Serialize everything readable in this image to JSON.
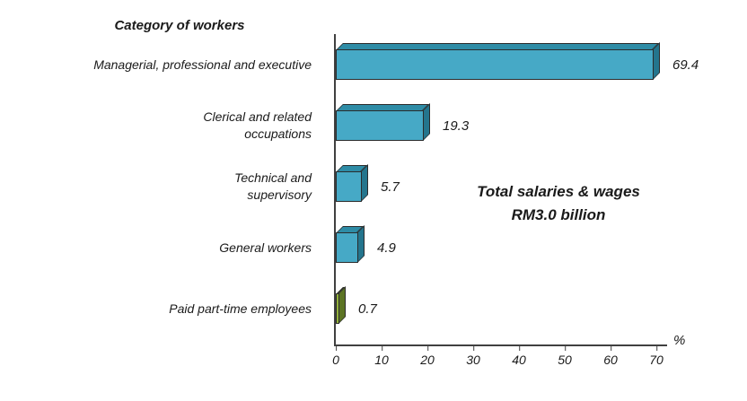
{
  "title": "Category of workers",
  "chart_data": {
    "type": "bar",
    "orientation": "horizontal",
    "title": "Category of workers",
    "categories": [
      "Managerial, professional and executive",
      "Clerical and related occupations",
      "Technical and supervisory",
      "General workers",
      "Paid part-time employees"
    ],
    "display_labels": [
      "Managerial, professional and executive",
      "Clerical and related\noccupations",
      "Technical and\nsupervisory",
      "General workers",
      "Paid part-time employees"
    ],
    "values": [
      69.4,
      19.3,
      5.7,
      4.9,
      0.7
    ],
    "xlabel": "%",
    "xlim": [
      0,
      70
    ],
    "xticks": [
      0,
      10,
      20,
      30,
      40,
      50,
      60,
      70
    ],
    "grid": false,
    "legend": "none",
    "bar_colors": [
      {
        "front": "#46A9C6",
        "top": "#2E8CA6",
        "side": "#24758D"
      },
      {
        "front": "#46A9C6",
        "top": "#2E8CA6",
        "side": "#24758D"
      },
      {
        "front": "#46A9C6",
        "top": "#2E8CA6",
        "side": "#24758D"
      },
      {
        "front": "#46A9C6",
        "top": "#2E8CA6",
        "side": "#24758D"
      },
      {
        "front": "#93B23A",
        "top": "#6E8A2B",
        "side": "#5C7424"
      }
    ],
    "annotation": "Total salaries & wages RM3.0 billion"
  },
  "annotation": {
    "line1": "Total salaries & wages",
    "line2": "RM3.0 billion"
  },
  "axis": {
    "ticks": [
      "0",
      "10",
      "20",
      "30",
      "40",
      "50",
      "60",
      "70"
    ],
    "unit": "%"
  }
}
